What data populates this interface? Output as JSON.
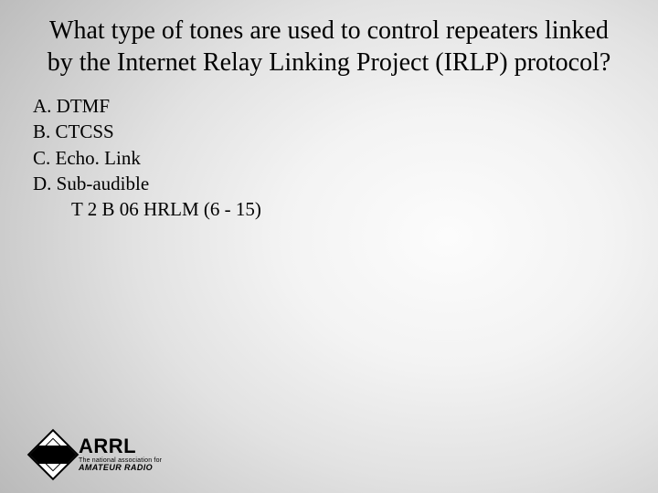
{
  "title": "What type of tones are used to control repeaters linked by the Internet Relay Linking Project (IRLP) protocol?",
  "options": {
    "a": "A. DTMF",
    "b": "B. CTCSS",
    "c": "C. Echo. Link",
    "d": "D. Sub-audible"
  },
  "reference": "T 2 B 06 HRLM (6 - 15)",
  "logo": {
    "word": "ARRL",
    "tag1": "The national association for",
    "tag2": "AMATEUR RADIO"
  },
  "style": {
    "title_fontsize": 28,
    "body_fontsize": 21,
    "font_family": "Times New Roman",
    "text_color": "#000000",
    "bg_gradient_center": "#fcfcfc",
    "bg_gradient_edge": "#949494",
    "slide_width": 720,
    "slide_height": 540
  }
}
